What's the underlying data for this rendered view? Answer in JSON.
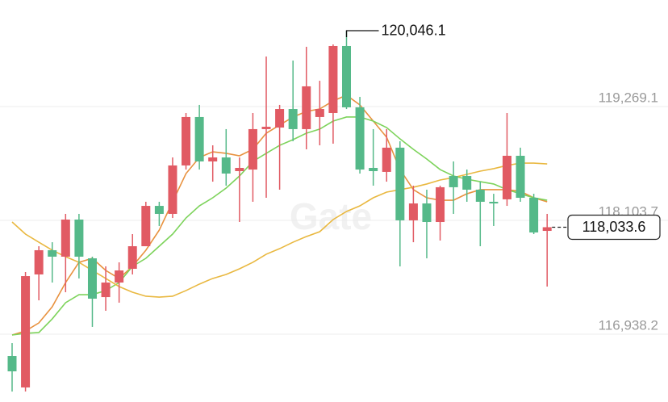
{
  "chart_data": {
    "type": "candlestick",
    "watermark": "Gate",
    "up_color": "#e15a63",
    "down_color": "#55b989",
    "ylim": [
      116244,
      120360
    ],
    "yticks": [
      {
        "value": 119269.1,
        "label": "119,269.1"
      },
      {
        "value": 118103.7,
        "label": "118,103.7"
      },
      {
        "value": 116938.2,
        "label": "116,938.2"
      }
    ],
    "grid": true,
    "open": [
      116715,
      116393,
      117550,
      117798,
      117732,
      118112,
      117715,
      117318,
      117467,
      117608,
      117839,
      118252,
      118170,
      118666,
      119162,
      118707,
      118748,
      118608,
      118624,
      119038,
      119054,
      119244,
      119038,
      119162,
      119203,
      119889,
      119261,
      118641,
      118600,
      118848,
      118104,
      118277,
      118087,
      118558,
      118558,
      118418,
      118294,
      118319,
      118765,
      118335,
      117996
    ],
    "high": [
      116847,
      117575,
      117839,
      117880,
      118170,
      118170,
      117732,
      117633,
      117674,
      117963,
      118294,
      118294,
      118748,
      119203,
      119286,
      118872,
      119038,
      118748,
      119203,
      119781,
      119286,
      119740,
      119881,
      119533,
      119905,
      120046.1,
      119368,
      119038,
      119038,
      118914,
      118459,
      118418,
      118459,
      118707,
      118624,
      118500,
      118376,
      119203,
      118848,
      118376,
      118170
    ],
    "low": [
      116351,
      116351,
      117285,
      117467,
      117368,
      117509,
      117013,
      117178,
      117261,
      117550,
      117839,
      118046,
      118128,
      118624,
      118624,
      118500,
      118459,
      118087,
      118294,
      118335,
      118418,
      118914,
      118831,
      118872,
      118889,
      119244,
      118583,
      118459,
      118500,
      117633,
      117880,
      117715,
      117897,
      118170,
      118294,
      117839,
      118046,
      118252,
      118294,
      117963,
      117426
    ],
    "close": [
      116558,
      117533,
      117798,
      117732,
      118112,
      117732,
      117302,
      117467,
      117591,
      117839,
      118252,
      118170,
      118666,
      119162,
      118707,
      118748,
      118583,
      118641,
      119038,
      119062,
      119244,
      119038,
      119476,
      119244,
      119889,
      119261,
      118624,
      118608,
      118848,
      118104,
      118277,
      118087,
      118443,
      118443,
      118418,
      118294,
      118277,
      118765,
      118335,
      117980,
      118033.6
    ],
    "series": [
      {
        "color": "#e8923f",
        "values": [
          116930,
          116971,
          117054,
          117219,
          117467,
          117674,
          117715,
          117591,
          117509,
          117633,
          117798,
          118004,
          118294,
          118583,
          118748,
          118806,
          118790,
          118765,
          118831,
          118996,
          119079,
          119162,
          119219,
          119244,
          119327,
          119385,
          119286,
          119120,
          118955,
          118624,
          118418,
          118335,
          118310,
          118310,
          118376,
          118418,
          118418,
          118418,
          118401,
          118335,
          118294
        ]
      },
      {
        "color": "#7dd35b",
        "values": [
          116930,
          116947,
          116955,
          117095,
          117261,
          117343,
          117343,
          117385,
          117467,
          117633,
          117715,
          117839,
          117963,
          118128,
          118252,
          118335,
          118434,
          118558,
          118707,
          118790,
          118872,
          118930,
          118996,
          119038,
          119120,
          119162,
          119162,
          119120,
          119054,
          118938,
          118831,
          118732,
          118624,
          118558,
          118525,
          118500,
          118476,
          118418,
          118376,
          118335,
          118310
        ]
      },
      {
        "color": "#e9b840",
        "values": [
          118087,
          117963,
          117880,
          117798,
          117732,
          117674,
          117591,
          117509,
          117426,
          117368,
          117327,
          117318,
          117327,
          117385,
          117451,
          117509,
          117550,
          117608,
          117674,
          117757,
          117814,
          117880,
          117938,
          117988,
          118112,
          118195,
          118252,
          118335,
          118393,
          118418,
          118443,
          118476,
          118517,
          118542,
          118575,
          118608,
          118633,
          118666,
          118690,
          118690,
          118682
        ]
      }
    ],
    "high_marker": {
      "value": 120046.1,
      "label": "120,046.1"
    },
    "last_price": {
      "value": 118033.6,
      "label": "118,033.6"
    }
  }
}
